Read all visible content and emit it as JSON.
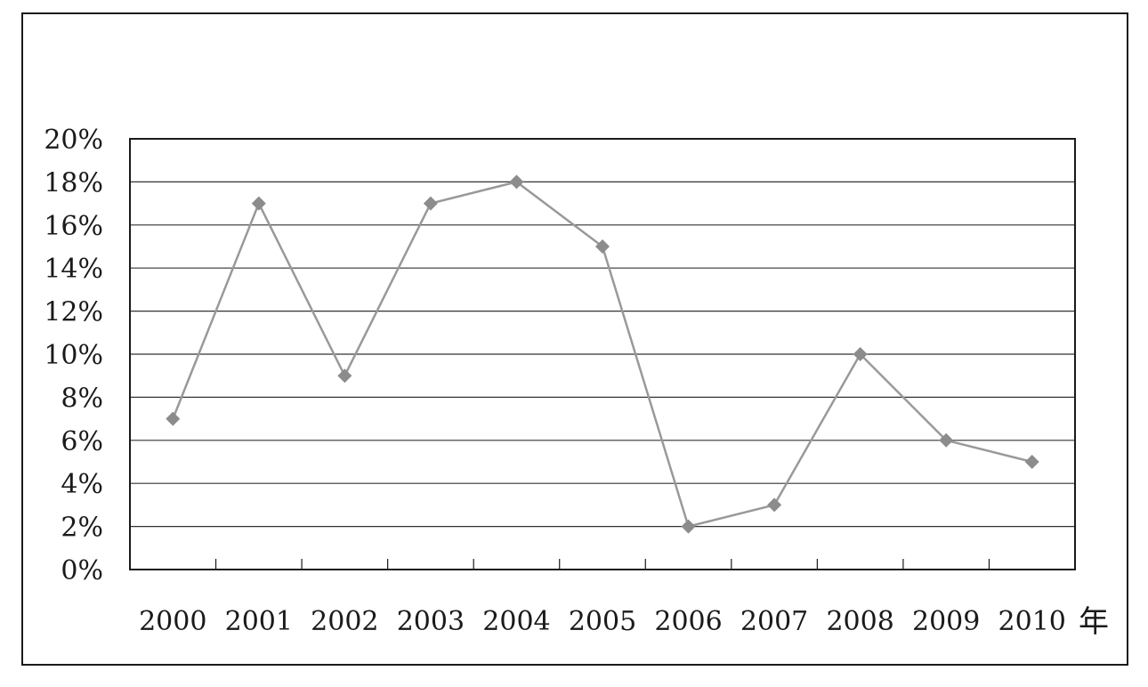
{
  "chart_data": {
    "type": "line",
    "title": "",
    "xlabel": "年",
    "ylabel": "",
    "categories": [
      "2000",
      "2001",
      "2002",
      "2003",
      "2004",
      "2005",
      "2006",
      "2007",
      "2008",
      "2009",
      "2010"
    ],
    "series": [
      {
        "values": [
          7,
          17,
          9,
          17,
          18,
          15,
          2,
          3,
          10,
          6,
          5
        ]
      }
    ],
    "ylim": [
      0,
      20
    ],
    "yticks": [
      0,
      2,
      4,
      6,
      8,
      10,
      12,
      14,
      16,
      18,
      20
    ],
    "ytick_format": "%",
    "grid": true,
    "marker": "diamond",
    "colors": {
      "line": "#999999",
      "marker": "#8c8c8c",
      "axis": "#1a1a1a",
      "grid": "#333333"
    }
  }
}
